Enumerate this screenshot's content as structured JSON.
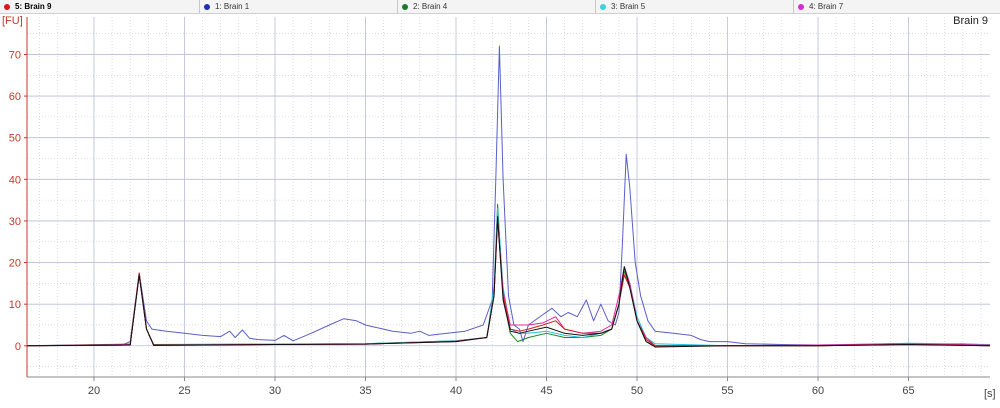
{
  "legend": [
    {
      "label": "5: Brain 9",
      "color": "#d7191c",
      "active": true
    },
    {
      "label": "1: Brain 1",
      "color": "#1f2fb5",
      "active": false
    },
    {
      "label": "2: Brain 4",
      "color": "#1a7a2a",
      "active": false
    },
    {
      "label": "3: Brain 5",
      "color": "#3fd0e0",
      "active": false
    },
    {
      "label": "4: Brain 7",
      "color": "#d62bd6",
      "active": false
    }
  ],
  "chart_data": {
    "type": "line",
    "title": "Brain 9",
    "ylabel": "[FU]",
    "xlabel": "[s]",
    "xlim": [
      16.3,
      69.5
    ],
    "ylim": [
      -7.5,
      79
    ],
    "xticks": [
      20,
      25,
      30,
      35,
      40,
      45,
      50,
      55,
      60,
      65
    ],
    "yticks": [
      0,
      10,
      20,
      30,
      40,
      50,
      60,
      70
    ],
    "grid": true,
    "series": [
      {
        "name": "Brain 1",
        "color": "#5a5fc8",
        "points": [
          [
            16.3,
            0
          ],
          [
            21.5,
            0.1
          ],
          [
            22.0,
            1
          ],
          [
            22.5,
            17.5
          ],
          [
            22.9,
            6
          ],
          [
            23.2,
            4
          ],
          [
            24,
            3.5
          ],
          [
            25,
            3
          ],
          [
            26,
            2.5
          ],
          [
            27,
            2.2
          ],
          [
            27.5,
            3.5
          ],
          [
            27.8,
            2
          ],
          [
            28.2,
            3.8
          ],
          [
            28.6,
            1.8
          ],
          [
            29,
            1.5
          ],
          [
            30,
            1.3
          ],
          [
            30.5,
            2.5
          ],
          [
            31,
            1.2
          ],
          [
            32,
            3
          ],
          [
            33,
            5
          ],
          [
            33.8,
            6.5
          ],
          [
            34.5,
            6
          ],
          [
            35,
            5
          ],
          [
            35.5,
            4.5
          ],
          [
            36.5,
            3.5
          ],
          [
            37.5,
            3
          ],
          [
            38,
            3.5
          ],
          [
            38.5,
            2.5
          ],
          [
            39.5,
            3
          ],
          [
            40.5,
            3.5
          ],
          [
            41.5,
            5
          ],
          [
            42.0,
            11
          ],
          [
            42.2,
            40
          ],
          [
            42.4,
            72
          ],
          [
            42.6,
            40
          ],
          [
            42.9,
            12
          ],
          [
            43.2,
            5
          ],
          [
            43.5,
            4
          ],
          [
            43.7,
            1
          ],
          [
            44,
            5
          ],
          [
            44.8,
            7.5
          ],
          [
            45.3,
            9
          ],
          [
            45.8,
            7
          ],
          [
            46.2,
            8
          ],
          [
            46.7,
            7
          ],
          [
            47.2,
            11
          ],
          [
            47.6,
            6
          ],
          [
            48,
            10
          ],
          [
            48.4,
            6
          ],
          [
            48.8,
            5
          ],
          [
            49.0,
            8
          ],
          [
            49.2,
            25
          ],
          [
            49.4,
            46
          ],
          [
            49.6,
            38
          ],
          [
            49.9,
            20
          ],
          [
            50.2,
            12
          ],
          [
            50.6,
            6
          ],
          [
            51,
            3.5
          ],
          [
            52,
            3
          ],
          [
            53,
            2.5
          ],
          [
            53.5,
            1.5
          ],
          [
            54,
            1
          ],
          [
            55,
            1
          ],
          [
            56,
            0.5
          ],
          [
            58,
            0.3
          ],
          [
            60,
            0.2
          ],
          [
            62,
            0.2
          ],
          [
            64,
            0.5
          ],
          [
            66,
            0.4
          ],
          [
            68,
            0.5
          ],
          [
            69.5,
            0.2
          ]
        ]
      },
      {
        "name": "Brain 4",
        "color": "#1a8a1a",
        "points": [
          [
            16.3,
            0
          ],
          [
            22.0,
            0.4
          ],
          [
            22.5,
            17
          ],
          [
            22.9,
            4
          ],
          [
            23.3,
            0.3
          ],
          [
            30,
            0.4
          ],
          [
            35,
            0.5
          ],
          [
            40,
            1.2
          ],
          [
            41.7,
            2
          ],
          [
            42.1,
            12
          ],
          [
            42.3,
            34
          ],
          [
            42.6,
            12
          ],
          [
            43.0,
            3
          ],
          [
            43.4,
            1
          ],
          [
            44,
            2
          ],
          [
            45,
            3
          ],
          [
            46,
            2
          ],
          [
            47,
            2
          ],
          [
            48,
            2.5
          ],
          [
            48.6,
            4
          ],
          [
            49.0,
            10
          ],
          [
            49.3,
            18
          ],
          [
            49.6,
            14
          ],
          [
            50.0,
            6
          ],
          [
            50.5,
            1
          ],
          [
            51,
            0
          ],
          [
            55,
            0
          ],
          [
            60,
            0
          ],
          [
            65,
            0.4
          ],
          [
            69.5,
            0
          ]
        ]
      },
      {
        "name": "Brain 5",
        "color": "#20c5d8",
        "points": [
          [
            16.3,
            0
          ],
          [
            22.0,
            0.3
          ],
          [
            22.5,
            17
          ],
          [
            22.9,
            4
          ],
          [
            23.3,
            0.2
          ],
          [
            30,
            0.4
          ],
          [
            35,
            0.5
          ],
          [
            40,
            1.2
          ],
          [
            41.7,
            2
          ],
          [
            42.1,
            14
          ],
          [
            42.3,
            33
          ],
          [
            42.6,
            14
          ],
          [
            43.0,
            4
          ],
          [
            43.5,
            3
          ],
          [
            44,
            3
          ],
          [
            45,
            3.5
          ],
          [
            46,
            2.5
          ],
          [
            47,
            2
          ],
          [
            48,
            3
          ],
          [
            48.6,
            4
          ],
          [
            49.0,
            10
          ],
          [
            49.3,
            19
          ],
          [
            49.6,
            15
          ],
          [
            50.0,
            7
          ],
          [
            50.5,
            2
          ],
          [
            51,
            0.5
          ],
          [
            55,
            0
          ],
          [
            60,
            0.2
          ],
          [
            65,
            0.6
          ],
          [
            69.5,
            0.3
          ]
        ]
      },
      {
        "name": "Brain 7",
        "color": "#e0289a",
        "points": [
          [
            16.3,
            0
          ],
          [
            22.0,
            0.3
          ],
          [
            22.5,
            17
          ],
          [
            22.9,
            4
          ],
          [
            23.3,
            0.2
          ],
          [
            30,
            0.3
          ],
          [
            35,
            0.4
          ],
          [
            40,
            1
          ],
          [
            41.7,
            2
          ],
          [
            42.1,
            12
          ],
          [
            42.3,
            30
          ],
          [
            42.6,
            13
          ],
          [
            43.0,
            5
          ],
          [
            43.5,
            5
          ],
          [
            44,
            5
          ],
          [
            44.8,
            5.5
          ],
          [
            45.5,
            7
          ],
          [
            46,
            4
          ],
          [
            47,
            3
          ],
          [
            48,
            3.5
          ],
          [
            48.6,
            5
          ],
          [
            49.0,
            12
          ],
          [
            49.3,
            19
          ],
          [
            49.6,
            15
          ],
          [
            50.0,
            6
          ],
          [
            50.5,
            2
          ],
          [
            51,
            0
          ],
          [
            55,
            0
          ],
          [
            60,
            0.2
          ],
          [
            65,
            0.5
          ],
          [
            69.5,
            0.2
          ]
        ]
      },
      {
        "name": "Brain 9",
        "color": "#d7191c",
        "points": [
          [
            16.3,
            0
          ],
          [
            22.0,
            0.2
          ],
          [
            22.5,
            17.5
          ],
          [
            22.9,
            4
          ],
          [
            23.3,
            0.1
          ],
          [
            30,
            0.3
          ],
          [
            35,
            0.4
          ],
          [
            40,
            1.1
          ],
          [
            41.7,
            2
          ],
          [
            42.1,
            12
          ],
          [
            42.3,
            31
          ],
          [
            42.6,
            12
          ],
          [
            43.0,
            4
          ],
          [
            43.5,
            3.5
          ],
          [
            44,
            4
          ],
          [
            44.8,
            5
          ],
          [
            45.5,
            6
          ],
          [
            46,
            4
          ],
          [
            47,
            3
          ],
          [
            48,
            3
          ],
          [
            48.6,
            4
          ],
          [
            49.0,
            10
          ],
          [
            49.3,
            17
          ],
          [
            49.6,
            14
          ],
          [
            50.0,
            6
          ],
          [
            50.5,
            1.5
          ],
          [
            51,
            0
          ],
          [
            55,
            0
          ],
          [
            60,
            0
          ],
          [
            65,
            0.3
          ],
          [
            69.5,
            0
          ]
        ]
      },
      {
        "name": "",
        "color": "#111111",
        "points": [
          [
            16.3,
            0
          ],
          [
            22.0,
            0.2
          ],
          [
            22.5,
            17
          ],
          [
            22.9,
            4
          ],
          [
            23.3,
            0.1
          ],
          [
            30,
            0.3
          ],
          [
            35,
            0.4
          ],
          [
            40,
            1
          ],
          [
            41.7,
            2
          ],
          [
            42.1,
            12
          ],
          [
            42.3,
            31
          ],
          [
            42.6,
            11
          ],
          [
            43.0,
            3.5
          ],
          [
            43.5,
            3
          ],
          [
            44,
            3.5
          ],
          [
            45,
            4.5
          ],
          [
            46,
            3
          ],
          [
            47,
            2.5
          ],
          [
            48,
            3
          ],
          [
            48.6,
            4
          ],
          [
            49.0,
            10
          ],
          [
            49.3,
            19
          ],
          [
            49.6,
            14
          ],
          [
            50.0,
            6
          ],
          [
            50.5,
            1
          ],
          [
            51,
            -0.3
          ],
          [
            55,
            0
          ],
          [
            60,
            0
          ],
          [
            65,
            0.3
          ],
          [
            69.5,
            0
          ]
        ]
      }
    ]
  }
}
